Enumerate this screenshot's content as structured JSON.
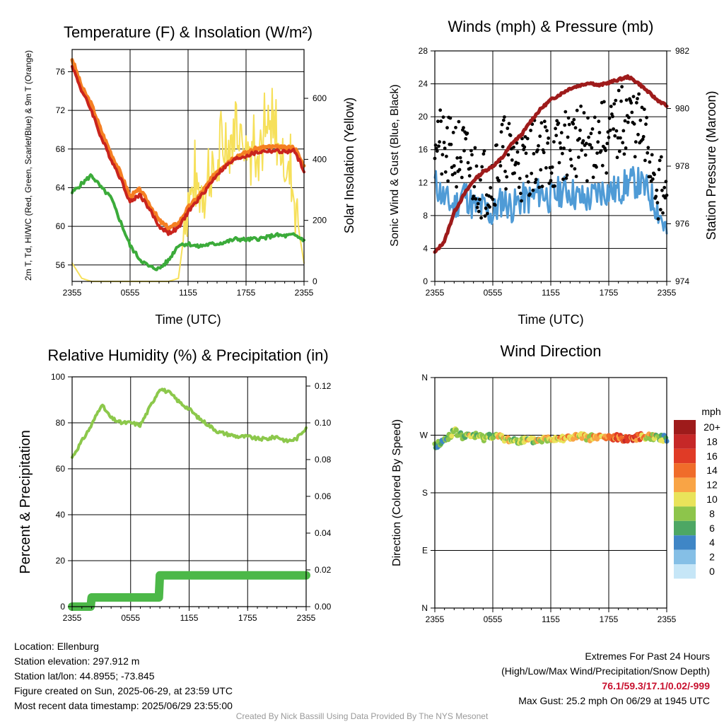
{
  "time_ticks": [
    "2355",
    "0555",
    "1155",
    "1755",
    "2355"
  ],
  "colors": {
    "temp_2m": "#c9241d",
    "temp_dewpoint": "#3bab3a",
    "temp_hiwc": "#b22222",
    "temp_9m": "#f57f22",
    "solar": "#f6e05a",
    "wind": "#4f9bd6",
    "gust": "#000000",
    "pressure": "#9e1b1b",
    "rh": "#8cc84b",
    "precip": "#4cb848"
  },
  "chart_data": [
    {
      "type": "line",
      "id": "temperature",
      "title": "Temperature (F) & Insolation (W/m²)",
      "xlabel": "Time (UTC)",
      "ylabel_left": "2m T, Td, HI/WC (Red, Green, Scarlet/Blue) & 9m T (Orange)",
      "ylabel_right": "Solar Insolation (Yellow)",
      "x_hours": [
        0,
        1,
        2,
        3,
        4,
        5,
        6,
        7,
        8,
        9,
        10,
        11,
        12,
        13,
        14,
        15,
        16,
        17,
        18,
        19,
        20,
        21,
        22,
        23,
        24
      ],
      "ylim_left": [
        54.3,
        78.3
      ],
      "yticks_left": [
        56,
        60,
        64,
        68,
        72,
        76
      ],
      "ylim_right": [
        0,
        760
      ],
      "yticks_right": [
        0,
        200,
        400,
        600
      ],
      "series": [
        {
          "name": "2m T",
          "axis": "left",
          "values": [
            76.6,
            74.0,
            72.0,
            69.2,
            67.0,
            65.0,
            62.5,
            63.3,
            61.8,
            60.0,
            59.3,
            59.8,
            61.5,
            62.7,
            64.0,
            65.4,
            66.3,
            67.0,
            67.3,
            67.6,
            67.8,
            67.8,
            67.7,
            67.8,
            65.8
          ]
        },
        {
          "name": "9m T",
          "axis": "left",
          "values": [
            77.3,
            74.4,
            72.6,
            69.9,
            67.6,
            65.5,
            63.1,
            63.8,
            62.3,
            60.6,
            59.8,
            60.3,
            61.9,
            63.0,
            64.3,
            65.7,
            66.6,
            67.3,
            67.6,
            68.0,
            68.2,
            68.2,
            68.1,
            68.2,
            66.2
          ]
        },
        {
          "name": "Td",
          "axis": "left",
          "values": [
            63.5,
            64.4,
            65.3,
            64.0,
            63.0,
            60.5,
            58.0,
            56.6,
            55.8,
            55.6,
            56.5,
            58.1,
            58.2,
            57.9,
            58.1,
            58.2,
            58.4,
            58.7,
            58.6,
            58.7,
            58.8,
            59.1,
            59.0,
            59.1,
            58.6
          ]
        },
        {
          "name": "Solar",
          "axis": "right",
          "values": [
            60,
            10,
            0,
            0,
            0,
            0,
            0,
            0,
            0,
            0,
            0,
            10,
            260,
            280,
            300,
            340,
            420,
            480,
            420,
            430,
            440,
            430,
            380,
            260,
            60
          ]
        }
      ]
    },
    {
      "type": "line",
      "id": "winds",
      "title": "Winds (mph) & Pressure (mb)",
      "xlabel": "Time (UTC)",
      "ylabel_left": "Sonic Wind & Gust (Blue, Black)",
      "ylabel_right": "Station Pressure (Maroon)",
      "x_hours": [
        0,
        1,
        2,
        3,
        4,
        5,
        6,
        7,
        8,
        9,
        10,
        11,
        12,
        13,
        14,
        15,
        16,
        17,
        18,
        19,
        20,
        21,
        22,
        23,
        24
      ],
      "ylim_left": [
        0,
        28
      ],
      "yticks_left": [
        0,
        4,
        8,
        12,
        16,
        20,
        24,
        28
      ],
      "ylim_right": [
        974,
        982
      ],
      "yticks_right": [
        974,
        976,
        978,
        980,
        982
      ],
      "series": [
        {
          "name": "Sonic Wind",
          "axis": "left",
          "values": [
            12,
            10,
            9,
            11,
            9,
            9,
            8,
            10,
            9,
            10,
            10,
            11,
            10,
            11,
            11,
            10,
            10,
            11,
            11,
            11,
            12,
            12,
            11,
            9,
            6
          ]
        },
        {
          "name": "Gust",
          "axis": "left",
          "values": [
            19,
            15,
            16,
            15,
            13,
            12,
            13,
            16,
            15,
            14,
            15,
            16,
            15,
            16,
            17,
            17,
            16,
            18,
            17,
            19,
            20,
            19,
            16,
            12,
            9
          ]
        },
        {
          "name": "Station Pressure",
          "axis": "right",
          "values": [
            975.0,
            975.4,
            976.4,
            977.0,
            977.5,
            977.8,
            978.0,
            978.3,
            978.8,
            979.1,
            979.6,
            980.0,
            980.3,
            980.5,
            980.7,
            980.8,
            980.9,
            980.8,
            980.9,
            981.0,
            981.1,
            980.9,
            980.6,
            980.3,
            980.1
          ]
        }
      ]
    },
    {
      "type": "line",
      "id": "humidity",
      "title": "Relative Humidity (%) & Precipitation (in)",
      "ylabel_left": "Percent & Precipitation",
      "x_hours": [
        0,
        1,
        2,
        3,
        4,
        5,
        6,
        7,
        8,
        9,
        10,
        11,
        12,
        13,
        14,
        15,
        16,
        17,
        18,
        19,
        20,
        21,
        22,
        23,
        24
      ],
      "ylim_left": [
        0,
        100
      ],
      "yticks_left": [
        0,
        20,
        40,
        60,
        80,
        100
      ],
      "ylim_right": [
        0,
        0.125
      ],
      "yticks_right": [
        "0.00",
        "0.02",
        "0.04",
        "0.06",
        "0.08",
        "0.10",
        "0.12"
      ],
      "series": [
        {
          "name": "RH",
          "axis": "left",
          "values": [
            65,
            72,
            79,
            88,
            82,
            80,
            80,
            79,
            87,
            95,
            93,
            89,
            86,
            82,
            79,
            76,
            75,
            74,
            74,
            73,
            73,
            74,
            72,
            73,
            78
          ]
        },
        {
          "name": "Precipitation",
          "axis": "right",
          "values": [
            0.0,
            0.0,
            0.005,
            0.005,
            0.005,
            0.005,
            0.005,
            0.005,
            0.005,
            0.017,
            0.017,
            0.017,
            0.017,
            0.017,
            0.017,
            0.017,
            0.017,
            0.017,
            0.017,
            0.017,
            0.017,
            0.017,
            0.017,
            0.017,
            0.017
          ]
        }
      ]
    },
    {
      "type": "scatter",
      "id": "wind_direction",
      "title": "Wind Direction",
      "ylabel_left": "Direction (Colored By Speed)",
      "yticks_labels": [
        "N",
        "E",
        "S",
        "W",
        "N"
      ],
      "ylim": [
        0,
        360
      ],
      "x_hours": [
        0,
        1,
        2,
        3,
        4,
        5,
        6,
        7,
        8,
        9,
        10,
        11,
        12,
        13,
        14,
        15,
        16,
        17,
        18,
        19,
        20,
        21,
        22,
        23,
        24
      ],
      "direction_deg": [
        253,
        262,
        276,
        267,
        270,
        266,
        270,
        265,
        262,
        262,
        261,
        263,
        265,
        266,
        266,
        268,
        266,
        267,
        266,
        266,
        265,
        267,
        269,
        267,
        264
      ],
      "speed_mph": [
        6,
        5,
        9,
        7,
        9,
        8,
        8,
        10,
        8,
        8,
        9,
        9,
        10,
        11,
        12,
        11,
        10,
        11,
        12,
        14,
        16,
        14,
        11,
        9,
        6
      ],
      "colorbar": {
        "unit": "mph",
        "labels": [
          "20+",
          "18",
          "16",
          "14",
          "12",
          "10",
          "8",
          "6",
          "4",
          "2",
          "0"
        ],
        "colors": [
          "#9e1b1b",
          "#c62828",
          "#e03b26",
          "#f06c2a",
          "#f9a445",
          "#e9e35a",
          "#8dc54b",
          "#4da764",
          "#3f86c6",
          "#85bfe6",
          "#c6e6f7"
        ]
      }
    }
  ],
  "footer": {
    "location": "Location: Ellenburg",
    "elevation": "Station elevation: 297.912 m",
    "latlon": "Station lat/lon: 44.8955; -73.845",
    "created": "Figure created on Sun, 2025-06-29, at 23:59 UTC",
    "recent": "Most recent data timestamp: 2025/06/29 23:55:00",
    "extremes_title": "Extremes For Past 24 Hours",
    "extremes_legend": "(High/Low/Max Wind/Precipitation/Snow Depth)",
    "extremes_values": "76.1/59.3/17.1/0.02/-999",
    "max_gust": "Max Gust: 25.2 mph On 06/29 at 1945 UTC",
    "credit": "Created By Nick Bassill Using Data Provided By The NYS Mesonet"
  }
}
